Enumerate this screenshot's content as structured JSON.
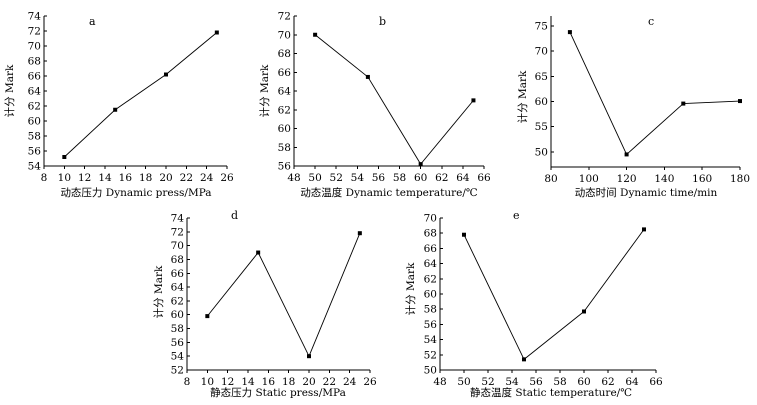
{
  "chart_data": [
    {
      "id": "a",
      "type": "line",
      "panel_label": "a",
      "title": "",
      "xlabel": "动态压力  Dynamic press/MPa",
      "ylabel": "计分 Mark",
      "xlim": [
        8,
        26
      ],
      "ylim": [
        54,
        74
      ],
      "xticks": [
        8,
        10,
        12,
        14,
        16,
        18,
        20,
        22,
        24,
        26
      ],
      "yticks": [
        54,
        56,
        58,
        60,
        62,
        64,
        66,
        68,
        70,
        72,
        74
      ],
      "x": [
        10,
        15,
        20,
        25
      ],
      "values": [
        55.2,
        61.5,
        66.2,
        71.8
      ]
    },
    {
      "id": "b",
      "type": "line",
      "panel_label": "b",
      "title": "",
      "xlabel": "动态温度  Dynamic temperature/℃",
      "ylabel": "计分 Mark",
      "xlim": [
        48,
        66
      ],
      "ylim": [
        56,
        72
      ],
      "xticks": [
        48,
        50,
        52,
        54,
        56,
        58,
        60,
        62,
        64,
        66
      ],
      "yticks": [
        56,
        58,
        60,
        62,
        64,
        66,
        68,
        70,
        72
      ],
      "x": [
        50,
        55,
        60,
        65
      ],
      "values": [
        70.0,
        65.5,
        56.2,
        63.0
      ]
    },
    {
      "id": "c",
      "type": "line",
      "panel_label": "c",
      "title": "",
      "xlabel": "动态时间  Dynamic time/min",
      "ylabel": "计分 Mark",
      "xlim": [
        80,
        180
      ],
      "ylim": [
        47,
        77
      ],
      "xticks": [
        80,
        100,
        120,
        140,
        160,
        180
      ],
      "yticks": [
        50,
        55,
        60,
        65,
        70,
        75
      ],
      "x": [
        90,
        120,
        150,
        180
      ],
      "values": [
        73.8,
        49.5,
        59.6,
        60.1
      ]
    },
    {
      "id": "d",
      "type": "line",
      "panel_label": "d",
      "title": "",
      "xlabel": "静态压力  Static press/MPa",
      "ylabel": "计分 Mark",
      "xlim": [
        8,
        26
      ],
      "ylim": [
        52,
        74
      ],
      "xticks": [
        8,
        10,
        12,
        14,
        16,
        18,
        20,
        22,
        24,
        26
      ],
      "yticks": [
        52,
        54,
        56,
        58,
        60,
        62,
        64,
        66,
        68,
        70,
        72,
        74
      ],
      "x": [
        10,
        15,
        20,
        25
      ],
      "values": [
        59.8,
        69.0,
        54.0,
        71.8
      ]
    },
    {
      "id": "e",
      "type": "line",
      "panel_label": "e",
      "title": "",
      "xlabel": "静态温度  Static temperature/℃",
      "ylabel": "计分 Mark",
      "xlim": [
        48,
        66
      ],
      "ylim": [
        50,
        70
      ],
      "xticks": [
        48,
        50,
        52,
        54,
        56,
        58,
        60,
        62,
        64,
        66
      ],
      "yticks": [
        50,
        52,
        54,
        56,
        58,
        60,
        62,
        64,
        66,
        68,
        70
      ],
      "x": [
        50,
        55,
        60,
        65
      ],
      "values": [
        67.8,
        51.4,
        57.7,
        68.5
      ]
    }
  ]
}
